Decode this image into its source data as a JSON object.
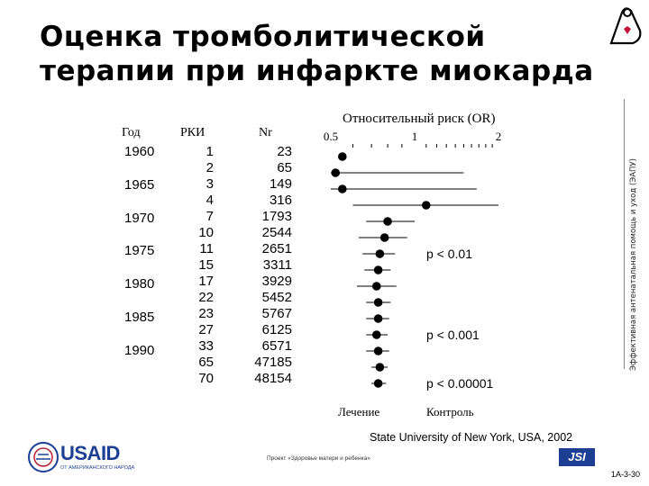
{
  "title": {
    "line1": "Оценка тромболитической",
    "line2": "терапии при инфаркте миокарда"
  },
  "side_text": "Эффективная антенатальная помощь и уход (ЭАПУ)",
  "table": {
    "headers": {
      "year": "Год",
      "rct": "РКИ",
      "nr": "Nr"
    },
    "years": [
      "1960",
      "1965",
      "1970",
      "1975",
      "1980",
      "1985",
      "1990"
    ],
    "rct": [
      "1",
      "2",
      "3",
      "4",
      "7",
      "10",
      "11",
      "15",
      "17",
      "22",
      "23",
      "27",
      "33",
      "65",
      "70"
    ],
    "nr": [
      "23",
      "65",
      "149",
      "316",
      "1793",
      "2544",
      "2651",
      "3311",
      "3929",
      "5452",
      "5767",
      "6125",
      "6571",
      "47185",
      "48154"
    ]
  },
  "chart_data": {
    "type": "scatter",
    "title": "Относительный риск (OR)",
    "x_ticks": [
      "0.5",
      "1",
      "2"
    ],
    "xlim": [
      0.5,
      2
    ],
    "x_scale": "log",
    "x_footer_left": "Лечение",
    "x_footer_right": "Контроль",
    "points": [
      {
        "rct": 1,
        "or": 0.55,
        "ci": null
      },
      {
        "rct": 2,
        "or": 0.52,
        "ci": [
          0.5,
          1.5
        ]
      },
      {
        "rct": 3,
        "or": 0.55,
        "ci": [
          0.5,
          1.67
        ]
      },
      {
        "rct": 4,
        "or": 1.1,
        "ci": [
          0.6,
          2.0
        ]
      },
      {
        "rct": 7,
        "or": 0.8,
        "ci": [
          0.67,
          1.0
        ]
      },
      {
        "rct": 10,
        "or": 0.78,
        "ci": [
          0.63,
          0.94
        ]
      },
      {
        "rct": 11,
        "or": 0.75,
        "ci": [
          0.65,
          0.85
        ]
      },
      {
        "rct": 15,
        "or": 0.74,
        "ci": [
          0.66,
          0.82
        ]
      },
      {
        "rct": 17,
        "or": 0.73,
        "ci": [
          0.62,
          0.86
        ]
      },
      {
        "rct": 22,
        "or": 0.74,
        "ci": [
          0.67,
          0.82
        ]
      },
      {
        "rct": 23,
        "or": 0.74,
        "ci": [
          0.67,
          0.81
        ]
      },
      {
        "rct": 27,
        "or": 0.73,
        "ci": [
          0.67,
          0.8
        ]
      },
      {
        "rct": 33,
        "or": 0.74,
        "ci": [
          0.67,
          0.81
        ]
      },
      {
        "rct": 65,
        "or": 0.75,
        "ci": [
          0.7,
          0.8
        ]
      },
      {
        "rct": 70,
        "or": 0.74,
        "ci": [
          0.7,
          0.79
        ]
      }
    ],
    "annotations": [
      {
        "text": "p < 0.01",
        "row": 6
      },
      {
        "text": "p < 0.001",
        "row": 11
      },
      {
        "text": "p < 0.00001",
        "row": 14
      }
    ]
  },
  "footer": {
    "source": "State University of New York, USA, 2002",
    "usaid": "USAID",
    "usaid_sub": "ОТ АМЕРИКАНСКОГО НАРОДА",
    "project": "Проект «Здоровье матери и ребенка»",
    "jsi": "JSI",
    "page": "1A-3-30"
  },
  "colors": {
    "usaid_blue": "#1c3f94",
    "marker": "#000000"
  }
}
